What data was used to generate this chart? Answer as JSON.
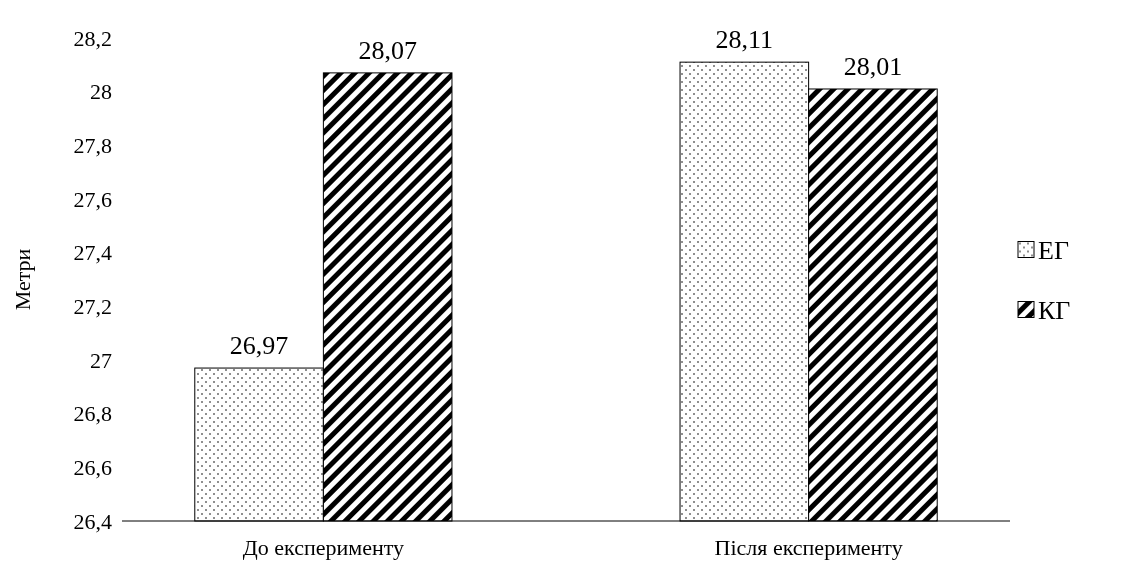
{
  "chart_data": {
    "type": "bar",
    "ylabel": "Метри",
    "categories": [
      "До експерименту",
      "Після експерименту"
    ],
    "series": [
      {
        "name": "ЕГ",
        "color": "#000000",
        "values": [
          26.97,
          28.11
        ],
        "value_labels": [
          "26,97",
          "28,11"
        ]
      },
      {
        "name": "КГ",
        "color": "#000000",
        "values": [
          28.07,
          28.01
        ],
        "value_labels": [
          "28,07",
          "28,01"
        ]
      }
    ],
    "ylim": [
      26.4,
      28.2
    ],
    "yticks": [
      {
        "value": 26.4,
        "label": "26,4"
      },
      {
        "value": 26.6,
        "label": "26,6"
      },
      {
        "value": 26.8,
        "label": "26,8"
      },
      27,
      {
        "value": 27.2,
        "label": "27,2"
      },
      {
        "value": 27.4,
        "label": "27,4"
      },
      {
        "value": 27.6,
        "label": "27,6"
      },
      {
        "value": 27.8,
        "label": "27,8"
      },
      28,
      {
        "value": 28.2,
        "label": "28,2"
      }
    ],
    "grid": false,
    "legend": "right"
  }
}
